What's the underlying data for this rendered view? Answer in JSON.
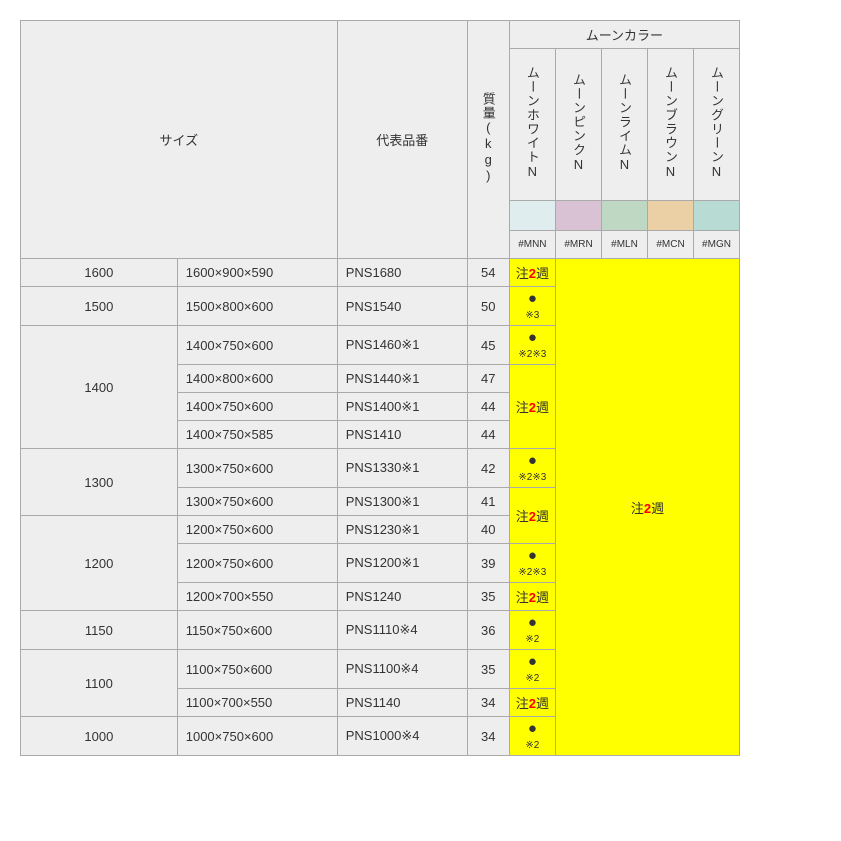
{
  "header": {
    "size": "サイズ",
    "partno": "代表品番",
    "mass_label": "質量(",
    "mass_unit": "kg",
    "mass_close": ")",
    "color_group": "ムーンカラー",
    "colors": [
      {
        "name": "ムーンホワイトN",
        "swatch": "#e0edee",
        "code": "#MNN"
      },
      {
        "name": "ムーンピンクN",
        "swatch": "#d8c2d4",
        "code": "#MRN"
      },
      {
        "name": "ムーンライムN",
        "swatch": "#bfd8c3",
        "code": "#MLN"
      },
      {
        "name": "ムーンブラウンN",
        "swatch": "#ecd0a5",
        "code": "#MCN"
      },
      {
        "name": "ムーングリーンN",
        "swatch": "#b8dcd4",
        "code": "#MGN"
      }
    ]
  },
  "note2w": {
    "pre": "注",
    "num": "2",
    "post": "週"
  },
  "dot": "●",
  "notes": {
    "n3": "※3",
    "n23": "※2※3",
    "n2": "※2"
  },
  "rows": [
    {
      "cat": "1600",
      "catspan": 1,
      "size": "1600×900×590",
      "pn": "PNS1680",
      "mass": "54",
      "mnn": "2w"
    },
    {
      "cat": "1500",
      "catspan": 1,
      "size": "1500×800×600",
      "pn": "PNS1540",
      "mass": "50",
      "mnn": "dot3"
    },
    {
      "cat": "1400",
      "catspan": 4,
      "size": "1400×750×600",
      "pn": "PNS1460※1",
      "mass": "45",
      "mnn": "dot23"
    },
    {
      "size": "1400×800×600",
      "pn": "PNS1440※1",
      "mass": "47",
      "mnn": "2w",
      "mnnspan": 3
    },
    {
      "size": "1400×750×600",
      "pn": "PNS1400※1",
      "mass": "44"
    },
    {
      "size": "1400×750×585",
      "pn": "PNS1410",
      "mass": "44"
    },
    {
      "cat": "1300",
      "catspan": 2,
      "size": "1300×750×600",
      "pn": "PNS1330※1",
      "mass": "42",
      "mnn": "dot23"
    },
    {
      "size": "1300×750×600",
      "pn": "PNS1300※1",
      "mass": "41",
      "mnn": "2w",
      "mnnspan": 2
    },
    {
      "cat": "1200",
      "catspan": 3,
      "size": "1200×750×600",
      "pn": "PNS1230※1",
      "mass": "40"
    },
    {
      "size": "1200×750×600",
      "pn": "PNS1200※1",
      "mass": "39",
      "mnn": "dot23"
    },
    {
      "size": "1200×700×550",
      "pn": "PNS1240",
      "mass": "35",
      "mnn": "2w"
    },
    {
      "cat": "1150",
      "catspan": 1,
      "size": "1150×750×600",
      "pn": "PNS1110※4",
      "mass": "36",
      "mnn": "dot2"
    },
    {
      "cat": "1100",
      "catspan": 2,
      "size": "1100×750×600",
      "pn": "PNS1100※4",
      "mass": "35",
      "mnn": "dot2"
    },
    {
      "size": "1100×700×550",
      "pn": "PNS1140",
      "mass": "34",
      "mnn": "2w"
    },
    {
      "cat": "1000",
      "catspan": 1,
      "size": "1000×750×600",
      "pn": "PNS1000※4",
      "mass": "34",
      "mnn": "dot2"
    }
  ],
  "right_block": "2w"
}
